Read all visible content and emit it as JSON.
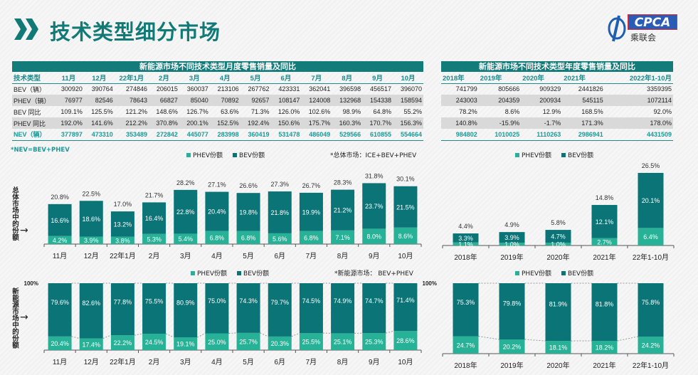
{
  "page": {
    "title": "技术类型细分市场",
    "logo_text": "CPCA",
    "logo_sub": "乘联会"
  },
  "colors": {
    "bev": "#0b7477",
    "phev": "#27b196",
    "header": "#137b7a",
    "accent": "#1a8a8a"
  },
  "monthly_table": {
    "title": "新能源市场不同技术类型月度零售销量及同比",
    "columns": [
      "技术类型",
      "11月",
      "12月",
      "22年1月",
      "2月",
      "3月",
      "4月",
      "5月",
      "6月",
      "7月",
      "8月",
      "9月",
      "10月"
    ],
    "rows": [
      {
        "label": "BEV（辆）",
        "values": [
          "300920",
          "390764",
          "274846",
          "206015",
          "360037",
          "213106",
          "267762",
          "423331",
          "362041",
          "396598",
          "456517",
          "396070"
        ]
      },
      {
        "label": "PHEV（辆）",
        "values": [
          "76977",
          "82546",
          "78643",
          "66827",
          "85040",
          "70892",
          "92657",
          "108147",
          "124008",
          "132968",
          "154338",
          "158594"
        ]
      },
      {
        "label": "BEV 同比",
        "values": [
          "109.1%",
          "125.5%",
          "121.2%",
          "148.6%",
          "126.7%",
          "63.6%",
          "71.3%",
          "126.0%",
          "102.6%",
          "98.9%",
          "64.8%",
          "55.2%"
        ]
      },
      {
        "label": "PHEV 同比",
        "values": [
          "192.0%",
          "141.6%",
          "212.2%",
          "370.8%",
          "200.1%",
          "152.5%",
          "192.4%",
          "150.6%",
          "175.7%",
          "160.3%",
          "170.7%",
          "156.3%"
        ]
      },
      {
        "label": "NEV（辆）",
        "values": [
          "377897",
          "473310",
          "353489",
          "272842",
          "445077",
          "283998",
          "360419",
          "531478",
          "486049",
          "529566",
          "610855",
          "554664"
        ]
      }
    ],
    "footnote": "*NEV=BEV+PHEV"
  },
  "annual_table": {
    "title": "新能源市场不同技术类型年度零售销量及同比",
    "columns": [
      "2018年",
      "2019年",
      "2020年",
      "2021年",
      "2022年1-10月"
    ],
    "rows": [
      {
        "values": [
          "741799",
          "805666",
          "909329",
          "2441826",
          "3359395"
        ]
      },
      {
        "values": [
          "243003",
          "204359",
          "200934",
          "545115",
          "1072114"
        ]
      },
      {
        "values": [
          "78.2%",
          "8.6%",
          "12.9%",
          "168.5%",
          "92.0%"
        ]
      },
      {
        "values": [
          "140.8%",
          "-15.9%",
          "-1.7%",
          "171.3%",
          "178.0%"
        ]
      },
      {
        "values": [
          "984802",
          "1010025",
          "1110263",
          "2986941",
          "4431509"
        ]
      }
    ]
  },
  "chart_data": [
    {
      "type": "bar",
      "stacked": true,
      "ylabel": "总体市场中的份额",
      "note": "*总体市场：ICE+BEV+PHEV",
      "legend": [
        "PHEV份额",
        "BEV份额"
      ],
      "categories": [
        "11月",
        "12月",
        "22年1月",
        "2月",
        "3月",
        "4月",
        "5月",
        "6月",
        "7月",
        "8月",
        "9月",
        "10月"
      ],
      "series": [
        {
          "name": "PHEV份额",
          "values": [
            "4.2%",
            "3.9%",
            "3.8%",
            "5.3%",
            "5.4%",
            "6.8%",
            "6.8%",
            "5.6%",
            "6.8%",
            "7.1%",
            "8.0%",
            "8.6%"
          ]
        },
        {
          "name": "BEV份额",
          "values": [
            "16.6%",
            "18.6%",
            "13.2%",
            "16.4%",
            "22.8%",
            "20.4%",
            "19.8%",
            "21.8%",
            "19.9%",
            "21.2%",
            "23.7%",
            "21.5%"
          ]
        }
      ],
      "totals": [
        "20.8%",
        "22.5%",
        "17.0%",
        "21.7%",
        "28.2%",
        "27.1%",
        "26.6%",
        "27.3%",
        "26.7%",
        "28.3%",
        "31.8%",
        "30.1%"
      ]
    },
    {
      "type": "bar",
      "stacked": true,
      "percent": true,
      "ylabel": "新能源市场中的份额",
      "note": "*新能源市场：  BEV+PHEV",
      "legend": [
        "PHEV份额",
        "BEV份额"
      ],
      "ymax_label": "100%",
      "categories": [
        "11月",
        "12月",
        "22年1月",
        "2月",
        "3月",
        "4月",
        "5月",
        "6月",
        "7月",
        "8月",
        "9月",
        "10月"
      ],
      "series": [
        {
          "name": "PHEV份额",
          "values": [
            "20.4%",
            "17.4%",
            "22.2%",
            "24.5%",
            "19.1%",
            "25.0%",
            "25.7%",
            "20.3%",
            "25.5%",
            "25.1%",
            "25.3%",
            "28.6%"
          ]
        },
        {
          "name": "BEV份额",
          "values": [
            "79.6%",
            "82.6%",
            "77.8%",
            "75.5%",
            "80.9%",
            "75.0%",
            "74.3%",
            "79.7%",
            "74.5%",
            "74.9%",
            "74.7%",
            "71.4%"
          ]
        }
      ]
    },
    {
      "type": "bar",
      "stacked": true,
      "legend": [
        "PHEV份额",
        "BEV份额"
      ],
      "categories": [
        "2018年",
        "2019年",
        "2020年",
        "2021年",
        "22年1-10月"
      ],
      "series": [
        {
          "name": "PHEV份额",
          "values": [
            "1.1%",
            "1.0%",
            "1.0%",
            "2.7%",
            "6.4%"
          ]
        },
        {
          "name": "BEV份额",
          "values": [
            "3.3%",
            "3.9%",
            "4.7%",
            "12.1%",
            "20.1%"
          ]
        }
      ],
      "totals": [
        "4.4%",
        "4.9%",
        "5.8%",
        "14.8%",
        "26.5%"
      ]
    },
    {
      "type": "bar",
      "stacked": true,
      "percent": true,
      "legend": [
        "PHEV份额",
        "BEV份额"
      ],
      "ymax_label": "100%",
      "categories": [
        "2018年",
        "2019年",
        "2020年",
        "2021年",
        "22年1-10月"
      ],
      "series": [
        {
          "name": "PHEV份额",
          "values": [
            "24.7%",
            "20.2%",
            "18.1%",
            "18.2%",
            "24.2%"
          ]
        },
        {
          "name": "BEV份额",
          "values": [
            "75.3%",
            "79.8%",
            "81.9%",
            "81.8%",
            "75.8%"
          ]
        }
      ]
    }
  ]
}
